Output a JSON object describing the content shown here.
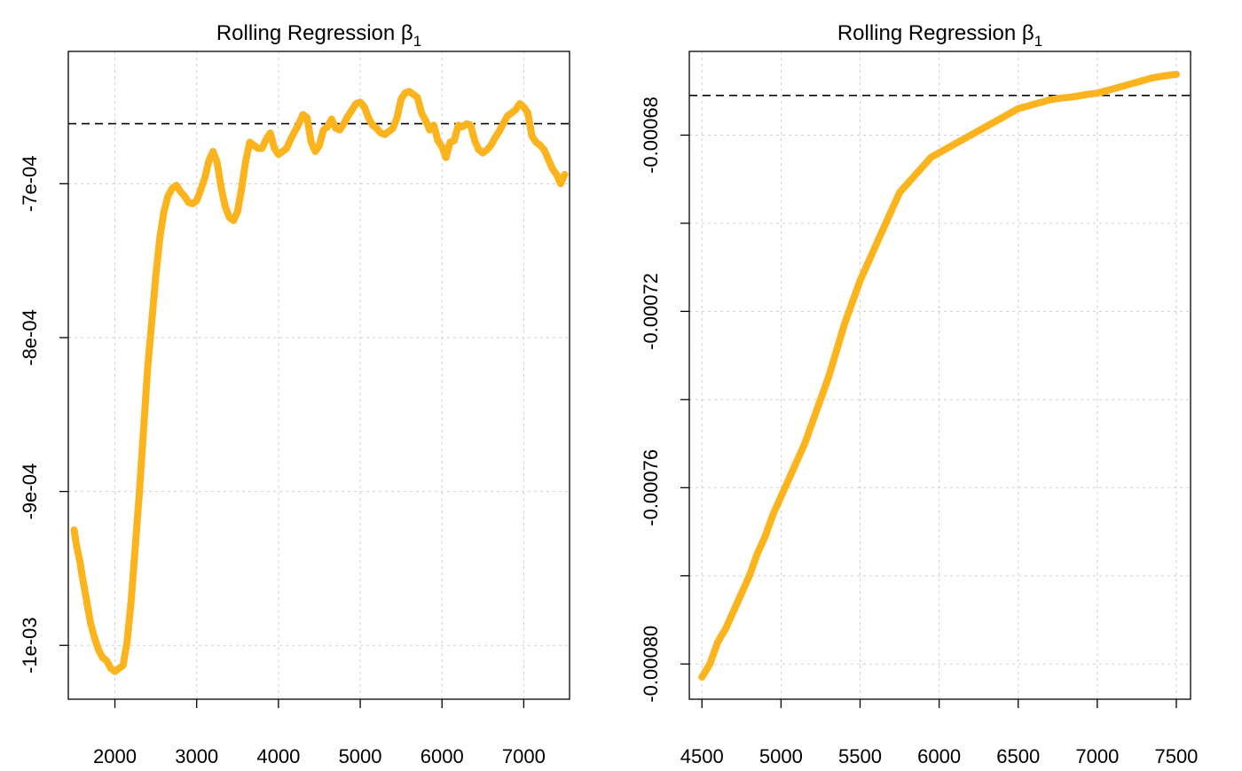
{
  "chart_data": [
    {
      "type": "line",
      "title": "Rolling Regression β",
      "title_subscript": "1",
      "xlabel": "",
      "ylabel": "",
      "xlim": [
        1430,
        7560
      ],
      "ylim": [
        -0.001035,
        -0.000614
      ],
      "x_ticks": [
        2000,
        3000,
        4000,
        5000,
        6000,
        7000
      ],
      "x_tick_labels": [
        "2000",
        "3000",
        "4000",
        "5000",
        "6000",
        "7000"
      ],
      "y_ticks": [
        -0.0007,
        -0.0008,
        -0.0009,
        -0.001
      ],
      "y_tick_labels": [
        "-7e-04",
        "-8e-04",
        "-9e-04",
        "-1e-03"
      ],
      "grid": true,
      "reference_line": {
        "y": -0.000661,
        "style": "dashed",
        "color": "#000000"
      },
      "series": [
        {
          "color": "#FBB41E",
          "x": [
            1500,
            1530,
            1570,
            1600,
            1650,
            1700,
            1750,
            1800,
            1850,
            1900,
            1950,
            2000,
            2050,
            2100,
            2150,
            2200,
            2250,
            2300,
            2350,
            2400,
            2450,
            2500,
            2550,
            2600,
            2650,
            2700,
            2750,
            2800,
            2850,
            2900,
            2950,
            3000,
            3050,
            3100,
            3150,
            3200,
            3250,
            3300,
            3350,
            3400,
            3450,
            3500,
            3550,
            3600,
            3650,
            3700,
            3750,
            3800,
            3850,
            3900,
            3950,
            4000,
            4050,
            4100,
            4150,
            4200,
            4250,
            4300,
            4350,
            4400,
            4450,
            4500,
            4550,
            4600,
            4650,
            4700,
            4750,
            4800,
            4850,
            4900,
            4950,
            5000,
            5050,
            5100,
            5150,
            5200,
            5250,
            5300,
            5350,
            5400,
            5450,
            5500,
            5550,
            5600,
            5650,
            5700,
            5750,
            5800,
            5850,
            5900,
            5950,
            6000,
            6050,
            6100,
            6150,
            6200,
            6250,
            6300,
            6350,
            6400,
            6450,
            6500,
            6550,
            6600,
            6650,
            6700,
            6750,
            6800,
            6850,
            6900,
            6950,
            7000,
            7050,
            7100,
            7150,
            7200,
            7250,
            7300,
            7350,
            7400,
            7450,
            7500
          ],
          "y": [
            -0.000925,
            -0.000935,
            -0.000945,
            -0.000955,
            -0.00097,
            -0.000985,
            -0.000995,
            -0.001003,
            -0.001008,
            -0.00101,
            -0.001015,
            -0.001017,
            -0.001015,
            -0.001013,
            -0.000997,
            -0.00097,
            -0.000935,
            -0.0009,
            -0.00086,
            -0.00082,
            -0.00079,
            -0.00076,
            -0.000735,
            -0.000718,
            -0.000708,
            -0.000703,
            -0.000701,
            -0.000705,
            -0.000708,
            -0.000712,
            -0.000713,
            -0.000711,
            -0.000704,
            -0.000696,
            -0.000685,
            -0.000679,
            -0.000686,
            -0.000703,
            -0.000715,
            -0.000722,
            -0.000724,
            -0.000718,
            -0.000703,
            -0.000685,
            -0.000673,
            -0.000675,
            -0.000677,
            -0.000677,
            -0.000671,
            -0.000667,
            -0.000677,
            -0.000681,
            -0.000679,
            -0.000677,
            -0.000671,
            -0.000666,
            -0.000661,
            -0.000655,
            -0.000657,
            -0.000673,
            -0.000679,
            -0.000675,
            -0.000665,
            -0.000663,
            -0.000658,
            -0.000664,
            -0.000665,
            -0.000661,
            -0.000656,
            -0.000652,
            -0.000648,
            -0.000647,
            -0.00065,
            -0.000657,
            -0.000662,
            -0.000664,
            -0.000667,
            -0.000668,
            -0.000666,
            -0.000664,
            -0.000657,
            -0.000645,
            -0.000641,
            -0.00064,
            -0.000642,
            -0.000644,
            -0.000654,
            -0.000659,
            -0.000665,
            -0.000662,
            -0.000672,
            -0.000676,
            -0.000683,
            -0.000673,
            -0.000672,
            -0.000662,
            -0.000663,
            -0.000661,
            -0.000662,
            -0.000672,
            -0.000678,
            -0.00068,
            -0.000678,
            -0.000675,
            -0.00067,
            -0.000666,
            -0.000661,
            -0.000656,
            -0.000654,
            -0.000652,
            -0.000648,
            -0.00065,
            -0.000654,
            -0.000669,
            -0.000673,
            -0.000675,
            -0.000678,
            -0.000684,
            -0.00069,
            -0.000694,
            -0.0007,
            -0.000694
          ]
        }
      ]
    },
    {
      "type": "line",
      "title": "Rolling Regression β",
      "title_subscript": "1",
      "xlabel": "",
      "ylabel": "",
      "xlim": [
        4420,
        7590
      ],
      "ylim": [
        -0.000808,
        -0.000661
      ],
      "x_ticks": [
        4500,
        5000,
        5500,
        6000,
        6500,
        7000,
        7500
      ],
      "x_tick_labels": [
        "4500",
        "5000",
        "5500",
        "6000",
        "6500",
        "7000",
        "7500"
      ],
      "y_ticks": [
        -0.00068,
        -0.0007,
        -0.00072,
        -0.00074,
        -0.00076,
        -0.00078,
        -0.0008
      ],
      "y_tick_labels": [
        "-0.00068",
        "",
        "-0.00072",
        "",
        "-0.00076",
        "",
        "-0.00080"
      ],
      "grid": true,
      "reference_line": {
        "y": -0.000671,
        "style": "dashed",
        "color": "#000000"
      },
      "series": [
        {
          "color": "#FBB41E",
          "x": [
            4500,
            4550,
            4600,
            4650,
            4700,
            4750,
            4800,
            4850,
            4900,
            4950,
            5000,
            5050,
            5100,
            5150,
            5200,
            5250,
            5300,
            5350,
            5400,
            5450,
            5500,
            5550,
            5600,
            5650,
            5700,
            5750,
            5800,
            5850,
            5900,
            5950,
            6000,
            6050,
            6100,
            6150,
            6200,
            6250,
            6300,
            6350,
            6400,
            6450,
            6500,
            6550,
            6600,
            6650,
            6700,
            6750,
            6800,
            6850,
            6900,
            6950,
            7000,
            7050,
            7100,
            7150,
            7200,
            7250,
            7300,
            7350,
            7400,
            7450,
            7500
          ],
          "y": [
            -0.000803,
            -0.0008,
            -0.000795,
            -0.000792,
            -0.000788,
            -0.000784,
            -0.00078,
            -0.000775,
            -0.000771,
            -0.000766,
            -0.000762,
            -0.000758,
            -0.000754,
            -0.00075,
            -0.000745,
            -0.00074,
            -0.000735,
            -0.000729,
            -0.000723,
            -0.000718,
            -0.000713,
            -0.000709,
            -0.000705,
            -0.000701,
            -0.000697,
            -0.000693,
            -0.000691,
            -0.000689,
            -0.000687,
            -0.000685,
            -0.000684,
            -0.000683,
            -0.000682,
            -0.000681,
            -0.00068,
            -0.000679,
            -0.000678,
            -0.000677,
            -0.000676,
            -0.000675,
            -0.000674,
            -0.0006735,
            -0.000673,
            -0.0006725,
            -0.000672,
            -0.0006717,
            -0.0006715,
            -0.0006713,
            -0.000671,
            -0.0006707,
            -0.0006705,
            -0.00067,
            -0.0006695,
            -0.000669,
            -0.0006685,
            -0.000668,
            -0.0006675,
            -0.000667,
            -0.0006667,
            -0.0006664,
            -0.0006662
          ]
        }
      ]
    }
  ]
}
